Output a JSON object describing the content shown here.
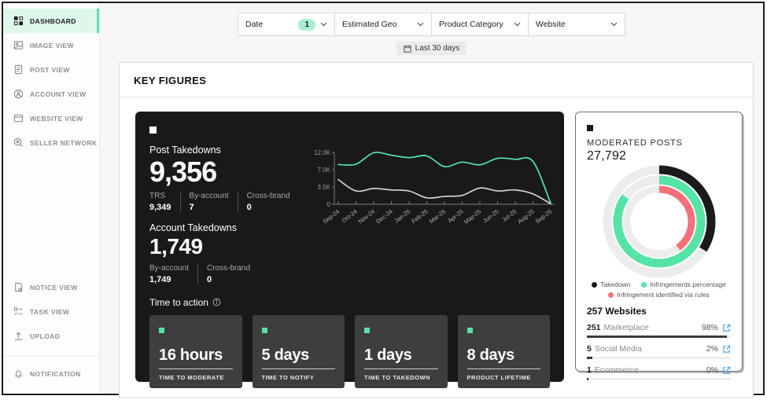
{
  "colors": {
    "accent": "#57e3a5",
    "accent_bg": "#def7eb",
    "badge_bg": "#a9efce",
    "dark_card": "#191919",
    "inner_card": "#3e3e3e",
    "salmon": "#f5707a",
    "link_blue": "#3f9fe8"
  },
  "sidebar": {
    "items_top": [
      {
        "label": "DASHBOARD",
        "icon": "dashboard-icon",
        "active": true
      },
      {
        "label": "IMAGE VIEW",
        "icon": "image-icon",
        "active": false
      },
      {
        "label": "POST VIEW",
        "icon": "post-icon",
        "active": false
      },
      {
        "label": "ACCOUNT VIEW",
        "icon": "account-icon",
        "active": false
      },
      {
        "label": "WEBSITE VIEW",
        "icon": "website-icon",
        "active": false
      },
      {
        "label": "SELLER NETWORK",
        "icon": "seller-network-icon",
        "active": false
      }
    ],
    "items_bottom": [
      {
        "label": "NOTICE VIEW",
        "icon": "notice-icon",
        "active": false
      },
      {
        "label": "TASK VIEW",
        "icon": "task-icon",
        "active": false
      },
      {
        "label": "UPLOAD",
        "icon": "upload-icon",
        "active": false
      }
    ],
    "items_footer": [
      {
        "label": "NOTIFICATION",
        "icon": "bell-icon",
        "active": false
      }
    ]
  },
  "filters": {
    "dropdowns": [
      {
        "label": "Date",
        "badge": "1"
      },
      {
        "label": "Estimated Geo",
        "badge": null
      },
      {
        "label": "Product Category",
        "badge": null
      },
      {
        "label": "Website",
        "badge": null
      }
    ],
    "date_chip": {
      "icon": "calendar-icon",
      "label": "Last 30 days"
    }
  },
  "section_title": "KEY FIGURES",
  "takedowns_card": {
    "post_takedowns": {
      "label": "Post Takedowns",
      "value": "9,356",
      "breakdown": [
        {
          "label": "TRS",
          "value": "9,349"
        },
        {
          "label": "By-account",
          "value": "7"
        },
        {
          "label": "Cross-brand",
          "value": "0"
        }
      ]
    },
    "account_takedowns": {
      "label": "Account Takedowns",
      "value": "1,749",
      "breakdown": [
        {
          "label": "By-account",
          "value": "1,749"
        },
        {
          "label": "Cross-brand",
          "value": "0"
        }
      ]
    },
    "time_to_action": {
      "label": "Time to action",
      "info_icon": "info-icon",
      "cards": [
        {
          "value": "16 hours",
          "label": "TIME TO MODERATE"
        },
        {
          "value": "5 days",
          "label": "TIME TO NOTIFY"
        },
        {
          "value": "1 days",
          "label": "TIME TO TAKEDOWN"
        },
        {
          "value": "8 days",
          "label": "PRODUCT LIFETIME"
        }
      ]
    }
  },
  "chart_data": {
    "type": "line",
    "x": [
      "Sep-24",
      "Oct-24",
      "Nov-24",
      "Dec-24",
      "Jan-25",
      "Feb-25",
      "Mar-25",
      "Apr-25",
      "May-25",
      "Jun-25",
      "Jul-25",
      "Aug-25",
      "Sep-25"
    ],
    "y_ticks": {
      "labels": [
        "0",
        "3.5K",
        "7.0K",
        "12.0K"
      ],
      "values": [
        0,
        3.5,
        7,
        12
      ]
    },
    "ylim": [
      0,
      12
    ],
    "grid": false,
    "legend_position": "none",
    "series": [
      {
        "name": "posts-green",
        "color": "#57e3a5",
        "values": [
          8.5,
          8.6,
          11.9,
          11.2,
          10.5,
          11.0,
          7.9,
          9.2,
          8.4,
          10.3,
          10.0,
          9.4,
          0.2
        ]
      },
      {
        "name": "takedowns-gray",
        "color": "#cfcfcf",
        "values": [
          5.0,
          2.7,
          3.2,
          2.9,
          2.7,
          1.3,
          1.6,
          1.8,
          3.3,
          2.7,
          2.9,
          2.1,
          0.1
        ]
      }
    ]
  },
  "moderated_card": {
    "title": "MODERATED POSTS",
    "value": "27,792",
    "donut": {
      "rings": [
        {
          "name": "takedown",
          "color": "#1b1b1b",
          "pct": 34
        },
        {
          "name": "infringements-percentage",
          "color": "#57e3a5",
          "pct": 85
        },
        {
          "name": "infringement-rules",
          "color": "#f5707a",
          "pct": 40
        }
      ],
      "track_color": "#ececec"
    },
    "legend": [
      {
        "label": "Takedown",
        "color": "#1b1b1b"
      },
      {
        "label": "Infringements percentage",
        "color": "#57e3a5"
      },
      {
        "label": "Infringement identified via rules",
        "color": "#f5707a"
      }
    ],
    "websites": {
      "header": "257 Websites",
      "rows": [
        {
          "count": "251",
          "label": "Marketplace",
          "pct": "98%",
          "bar": 97
        },
        {
          "count": "5",
          "label": "Social Media",
          "pct": "2%",
          "bar": 4
        },
        {
          "count": "1",
          "label": "Ecommerce",
          "pct": "0%",
          "bar": 1
        }
      ]
    }
  }
}
